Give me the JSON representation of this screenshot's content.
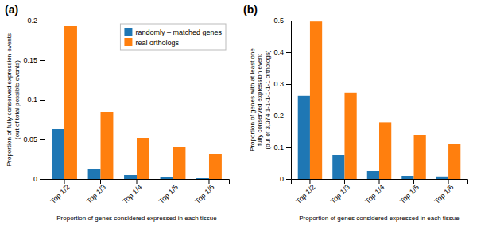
{
  "chart_data": [
    {
      "type": "bar",
      "title": "(a)",
      "categories": [
        "Top 1/2",
        "Top 1/3",
        "Top 1/4",
        "Top 1/5",
        "Top 1/6"
      ],
      "series": [
        {
          "name": "randomly – matched genes",
          "values": [
            0.063,
            0.013,
            0.005,
            0.002,
            0.001
          ]
        },
        {
          "name": "real orthologs",
          "values": [
            0.193,
            0.085,
            0.052,
            0.04,
            0.031
          ]
        }
      ],
      "xlabel": "Proportion of genes considered expressed in each tissue",
      "ylabel": "Proportion of fully conserved expression events\n(out of total possible events)",
      "ylim": [
        0,
        0.2
      ],
      "yticks": [
        0,
        0.05,
        0.1,
        0.15,
        0.2
      ],
      "legend": "upper-right"
    },
    {
      "type": "bar",
      "title": "(b)",
      "categories": [
        "Top 1/2",
        "Top 1/3",
        "Top 1/4",
        "Top 1/5",
        "Top 1/6"
      ],
      "series": [
        {
          "name": "randomly – matched genes",
          "values": [
            0.263,
            0.075,
            0.025,
            0.01,
            0.008
          ]
        },
        {
          "name": "real orthologs",
          "values": [
            0.497,
            0.273,
            0.179,
            0.138,
            0.11
          ]
        }
      ],
      "xlabel": "Proportion of genes considered expressed in each tissue",
      "ylabel": "Proportion of genes with at least one\nfully conserved expression event\n(out of 3,074 1-1-1-1-1-1 orthologs)",
      "ylim": [
        0,
        0.5
      ],
      "yticks": [
        0,
        0.1,
        0.2,
        0.3,
        0.4,
        0.5
      ]
    }
  ]
}
